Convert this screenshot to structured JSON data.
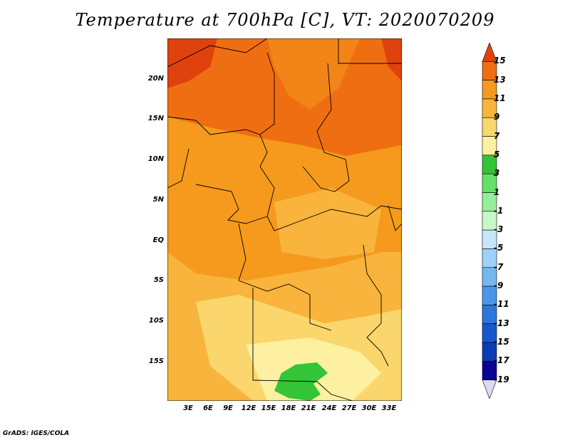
{
  "title": "Temperature at 700hPa [C], VT: 2020070209",
  "footer": "GrADS: IGES/COLA",
  "map": {
    "lat_labels": [
      "20N",
      "15N",
      "10N",
      "5N",
      "EQ",
      "5S",
      "10S",
      "15S"
    ],
    "lon_labels": [
      "3E",
      "6E",
      "9E",
      "12E",
      "15E",
      "18E",
      "21E",
      "24E",
      "27E",
      "30E",
      "33E"
    ]
  },
  "colorbar": {
    "labels": [
      "15",
      "13",
      "11",
      "9",
      "7",
      "5",
      "3",
      "1",
      "-1",
      "-3",
      "-5",
      "-7",
      "-9",
      "-11",
      "-13",
      "-15",
      "-17",
      "-19"
    ],
    "colors": [
      "#e0420e",
      "#f06e12",
      "#f59a1c",
      "#f8b43c",
      "#fad66c",
      "#fdf0a0",
      "#34c437",
      "#64e06a",
      "#96ee98",
      "#c8f8c8",
      "#c8e6fa",
      "#a0d0f8",
      "#76b6f2",
      "#4c96e8",
      "#2c76dc",
      "#1658cc",
      "#0c3cb4",
      "#060690",
      "#dcd8f8"
    ]
  }
}
